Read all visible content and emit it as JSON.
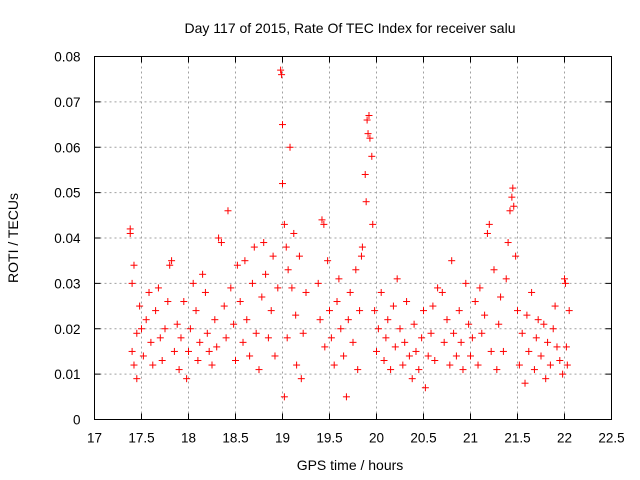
{
  "chart_data": {
    "type": "scatter",
    "title": "Day 117 of 2015, Rate Of TEC Index for receiver salu",
    "xlabel": "GPS time / hours",
    "ylabel": "ROTI / TECUs",
    "xlim": [
      17,
      22.5
    ],
    "ylim": [
      0,
      0.08
    ],
    "xticks": [
      "17",
      "17.5",
      "18",
      "18.5",
      "19",
      "19.5",
      "20",
      "20.5",
      "21",
      "21.5",
      "22",
      "22.5"
    ],
    "yticks": [
      "0",
      "0.01",
      "0.02",
      "0.03",
      "0.04",
      "0.05",
      "0.06",
      "0.07",
      "0.08"
    ],
    "grid": true,
    "marker": "plus",
    "color": "#ff0000",
    "series": [
      {
        "points": [
          [
            17.38,
            0.042
          ],
          [
            17.38,
            0.041
          ],
          [
            17.4,
            0.03
          ],
          [
            17.42,
            0.034
          ],
          [
            17.4,
            0.015
          ],
          [
            17.42,
            0.012
          ],
          [
            17.45,
            0.009
          ],
          [
            17.45,
            0.019
          ],
          [
            17.48,
            0.025
          ],
          [
            17.5,
            0.02
          ],
          [
            17.52,
            0.014
          ],
          [
            17.55,
            0.022
          ],
          [
            17.58,
            0.028
          ],
          [
            17.6,
            0.017
          ],
          [
            17.62,
            0.012
          ],
          [
            17.65,
            0.024
          ],
          [
            17.68,
            0.029
          ],
          [
            17.7,
            0.018
          ],
          [
            17.72,
            0.013
          ],
          [
            17.75,
            0.02
          ],
          [
            17.78,
            0.026
          ],
          [
            17.8,
            0.034
          ],
          [
            17.82,
            0.035
          ],
          [
            17.85,
            0.015
          ],
          [
            17.88,
            0.021
          ],
          [
            17.9,
            0.011
          ],
          [
            17.92,
            0.018
          ],
          [
            17.95,
            0.026
          ],
          [
            17.98,
            0.009
          ],
          [
            18.0,
            0.015
          ],
          [
            18.02,
            0.02
          ],
          [
            18.05,
            0.03
          ],
          [
            18.08,
            0.024
          ],
          [
            18.1,
            0.013
          ],
          [
            18.12,
            0.017
          ],
          [
            18.15,
            0.032
          ],
          [
            18.18,
            0.028
          ],
          [
            18.2,
            0.019
          ],
          [
            18.22,
            0.015
          ],
          [
            18.25,
            0.012
          ],
          [
            18.28,
            0.022
          ],
          [
            18.3,
            0.016
          ],
          [
            18.32,
            0.04
          ],
          [
            18.35,
            0.039
          ],
          [
            18.38,
            0.025
          ],
          [
            18.4,
            0.018
          ],
          [
            18.42,
            0.046
          ],
          [
            18.45,
            0.029
          ],
          [
            18.48,
            0.021
          ],
          [
            18.5,
            0.013
          ],
          [
            18.52,
            0.034
          ],
          [
            18.55,
            0.026
          ],
          [
            18.58,
            0.017
          ],
          [
            18.6,
            0.035
          ],
          [
            18.62,
            0.022
          ],
          [
            18.65,
            0.014
          ],
          [
            18.68,
            0.03
          ],
          [
            18.7,
            0.038
          ],
          [
            18.72,
            0.019
          ],
          [
            18.75,
            0.011
          ],
          [
            18.78,
            0.027
          ],
          [
            18.8,
            0.039
          ],
          [
            18.82,
            0.032
          ],
          [
            18.85,
            0.018
          ],
          [
            18.88,
            0.024
          ],
          [
            18.9,
            0.036
          ],
          [
            18.92,
            0.014
          ],
          [
            18.95,
            0.029
          ],
          [
            18.98,
            0.077
          ],
          [
            18.99,
            0.076
          ],
          [
            19.0,
            0.065
          ],
          [
            19.0,
            0.052
          ],
          [
            19.02,
            0.043
          ],
          [
            19.02,
            0.005
          ],
          [
            19.04,
            0.038
          ],
          [
            19.05,
            0.018
          ],
          [
            19.06,
            0.033
          ],
          [
            19.08,
            0.06
          ],
          [
            19.1,
            0.029
          ],
          [
            19.12,
            0.041
          ],
          [
            19.14,
            0.023
          ],
          [
            19.15,
            0.012
          ],
          [
            19.18,
            0.036
          ],
          [
            19.2,
            0.009
          ],
          [
            19.22,
            0.019
          ],
          [
            19.25,
            0.028
          ],
          [
            19.38,
            0.03
          ],
          [
            19.4,
            0.022
          ],
          [
            19.42,
            0.044
          ],
          [
            19.44,
            0.043
          ],
          [
            19.45,
            0.016
          ],
          [
            19.48,
            0.035
          ],
          [
            19.5,
            0.024
          ],
          [
            19.52,
            0.018
          ],
          [
            19.55,
            0.012
          ],
          [
            19.58,
            0.026
          ],
          [
            19.6,
            0.031
          ],
          [
            19.62,
            0.02
          ],
          [
            19.65,
            0.014
          ],
          [
            19.68,
            0.005
          ],
          [
            19.7,
            0.022
          ],
          [
            19.72,
            0.028
          ],
          [
            19.75,
            0.017
          ],
          [
            19.78,
            0.033
          ],
          [
            19.8,
            0.011
          ],
          [
            19.82,
            0.024
          ],
          [
            19.84,
            0.036
          ],
          [
            19.85,
            0.038
          ],
          [
            19.88,
            0.054
          ],
          [
            19.89,
            0.048
          ],
          [
            19.9,
            0.066
          ],
          [
            19.91,
            0.063
          ],
          [
            19.92,
            0.067
          ],
          [
            19.93,
            0.062
          ],
          [
            19.95,
            0.058
          ],
          [
            19.96,
            0.043
          ],
          [
            19.98,
            0.024
          ],
          [
            20.0,
            0.015
          ],
          [
            20.02,
            0.02
          ],
          [
            20.05,
            0.028
          ],
          [
            20.08,
            0.013
          ],
          [
            20.1,
            0.018
          ],
          [
            20.12,
            0.022
          ],
          [
            20.15,
            0.011
          ],
          [
            20.18,
            0.025
          ],
          [
            20.2,
            0.016
          ],
          [
            20.22,
            0.031
          ],
          [
            20.25,
            0.02
          ],
          [
            20.28,
            0.012
          ],
          [
            20.3,
            0.017
          ],
          [
            20.32,
            0.026
          ],
          [
            20.35,
            0.014
          ],
          [
            20.38,
            0.009
          ],
          [
            20.4,
            0.021
          ],
          [
            20.42,
            0.015
          ],
          [
            20.45,
            0.011
          ],
          [
            20.48,
            0.018
          ],
          [
            20.5,
            0.024
          ],
          [
            20.52,
            0.007
          ],
          [
            20.55,
            0.014
          ],
          [
            20.58,
            0.019
          ],
          [
            20.6,
            0.025
          ],
          [
            20.62,
            0.013
          ],
          [
            20.65,
            0.029
          ],
          [
            20.7,
            0.028
          ],
          [
            20.72,
            0.017
          ],
          [
            20.75,
            0.022
          ],
          [
            20.78,
            0.012
          ],
          [
            20.8,
            0.035
          ],
          [
            20.82,
            0.019
          ],
          [
            20.85,
            0.014
          ],
          [
            20.88,
            0.024
          ],
          [
            20.9,
            0.017
          ],
          [
            20.92,
            0.011
          ],
          [
            20.95,
            0.03
          ],
          [
            20.98,
            0.021
          ],
          [
            21.0,
            0.014
          ],
          [
            21.02,
            0.018
          ],
          [
            21.05,
            0.026
          ],
          [
            21.08,
            0.012
          ],
          [
            21.1,
            0.029
          ],
          [
            21.12,
            0.019
          ],
          [
            21.15,
            0.023
          ],
          [
            21.18,
            0.041
          ],
          [
            21.2,
            0.043
          ],
          [
            21.22,
            0.015
          ],
          [
            21.25,
            0.033
          ],
          [
            21.28,
            0.011
          ],
          [
            21.3,
            0.021
          ],
          [
            21.32,
            0.027
          ],
          [
            21.35,
            0.015
          ],
          [
            21.38,
            0.031
          ],
          [
            21.4,
            0.039
          ],
          [
            21.42,
            0.046
          ],
          [
            21.44,
            0.049
          ],
          [
            21.45,
            0.051
          ],
          [
            21.46,
            0.047
          ],
          [
            21.48,
            0.036
          ],
          [
            21.5,
            0.024
          ],
          [
            21.52,
            0.012
          ],
          [
            21.55,
            0.019
          ],
          [
            21.58,
            0.008
          ],
          [
            21.6,
            0.023
          ],
          [
            21.62,
            0.015
          ],
          [
            21.65,
            0.028
          ],
          [
            21.68,
            0.011
          ],
          [
            21.7,
            0.018
          ],
          [
            21.72,
            0.022
          ],
          [
            21.75,
            0.014
          ],
          [
            21.78,
            0.021
          ],
          [
            21.8,
            0.009
          ],
          [
            21.82,
            0.017
          ],
          [
            21.85,
            0.012
          ],
          [
            21.88,
            0.02
          ],
          [
            21.9,
            0.025
          ],
          [
            21.92,
            0.016
          ],
          [
            21.95,
            0.013
          ],
          [
            21.98,
            0.01
          ],
          [
            22.0,
            0.031
          ],
          [
            22.01,
            0.03
          ],
          [
            22.02,
            0.016
          ],
          [
            22.03,
            0.012
          ],
          [
            22.05,
            0.024
          ]
        ]
      }
    ]
  }
}
